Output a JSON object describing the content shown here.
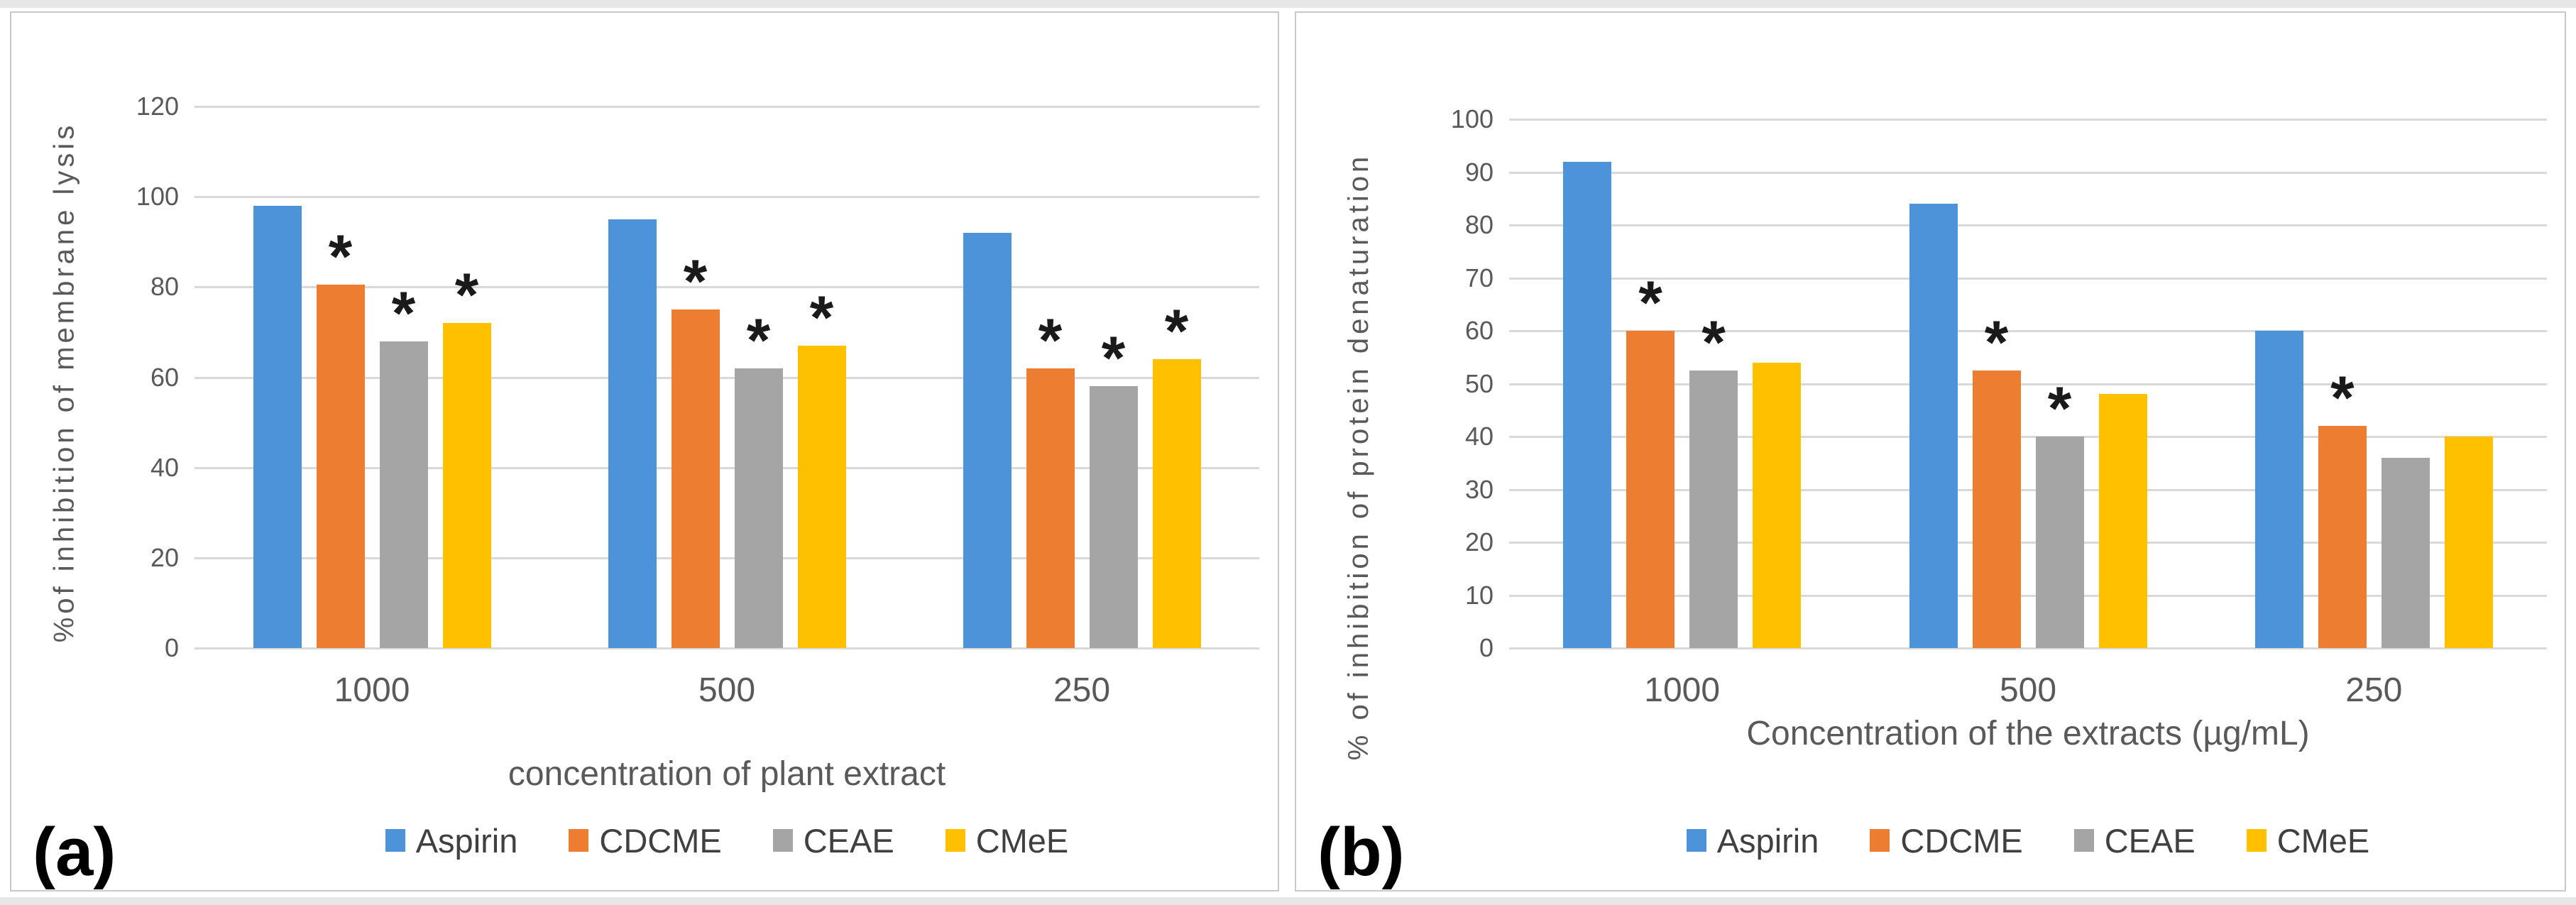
{
  "figure": {
    "panel_border_color": "#c9c9c9",
    "gridline_color": "#d9d9d9",
    "axis_text_color": "#595959",
    "significance_symbol": "*"
  },
  "chart_data": [
    {
      "type": "bar",
      "panel_label": "(a)",
      "ylabel": "%of inhibition of membrane lysis",
      "xlabel": "concentration of plant extract",
      "categories": [
        "1000",
        "500",
        "250"
      ],
      "yticks": [
        0,
        20,
        40,
        60,
        80,
        100,
        120
      ],
      "ylim": [
        0,
        120
      ],
      "grid": true,
      "legend_position": "bottom",
      "series": [
        {
          "name": "Aspirin",
          "color": "#4D93D9",
          "values": [
            98,
            95,
            92
          ],
          "significance": [
            false,
            false,
            false
          ]
        },
        {
          "name": "CDCME",
          "color": "#ED7D31",
          "values": [
            80.5,
            75,
            62
          ],
          "significance": [
            true,
            true,
            true
          ]
        },
        {
          "name": "CEAE",
          "color": "#A5A5A5",
          "values": [
            68,
            62,
            58
          ],
          "significance": [
            true,
            true,
            true
          ]
        },
        {
          "name": "CMeE",
          "color": "#FFC000",
          "values": [
            72,
            67,
            64
          ],
          "significance": [
            true,
            true,
            true
          ]
        }
      ]
    },
    {
      "type": "bar",
      "panel_label": "(b)",
      "ylabel": "% of inhibition of protein denaturation",
      "xlabel": "Concentration of the extracts (µg/mL)",
      "categories": [
        "1000",
        "500",
        "250"
      ],
      "yticks": [
        0,
        10,
        20,
        30,
        40,
        50,
        60,
        70,
        80,
        90,
        100
      ],
      "ylim": [
        0,
        100
      ],
      "grid": true,
      "legend_position": "bottom",
      "series": [
        {
          "name": "Aspirin",
          "color": "#4D93D9",
          "values": [
            92,
            84,
            60
          ],
          "significance": [
            false,
            false,
            false
          ]
        },
        {
          "name": "CDCME",
          "color": "#ED7D31",
          "values": [
            60,
            52.5,
            42
          ],
          "significance": [
            true,
            true,
            true
          ]
        },
        {
          "name": "CEAE",
          "color": "#A5A5A5",
          "values": [
            52.5,
            40,
            36
          ],
          "significance": [
            true,
            true,
            false
          ]
        },
        {
          "name": "CMeE",
          "color": "#FFC000",
          "values": [
            54,
            48,
            40
          ],
          "significance": [
            false,
            false,
            false
          ]
        }
      ]
    }
  ]
}
